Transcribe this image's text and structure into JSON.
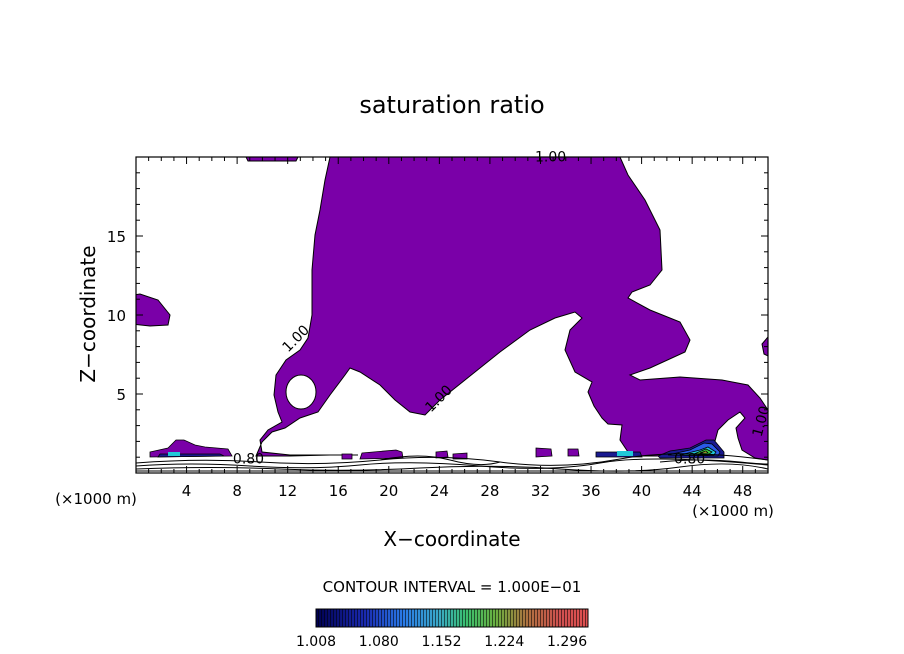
{
  "chart_data": {
    "type": "contour",
    "title": "saturation ratio",
    "xlabel": "X−coordinate",
    "ylabel": "Z−coordinate",
    "x_unit_left": "(×1000 m)",
    "x_unit_right": "(×1000 m)",
    "xlim": [
      0,
      50
    ],
    "ylim": [
      0,
      20
    ],
    "x_ticks": [
      4,
      8,
      12,
      16,
      20,
      24,
      28,
      32,
      36,
      40,
      44,
      48
    ],
    "y_ticks": [
      5,
      10,
      15
    ],
    "contour_interval_text": "CONTOUR INTERVAL = 1.000E−01",
    "contour_labels": [
      {
        "text": "1.00",
        "x": 32.8,
        "z": 19.7
      },
      {
        "text": "1.00",
        "x": 12.9,
        "z": 8.3
      },
      {
        "text": "1.00",
        "x": 24.2,
        "z": 4.5
      },
      {
        "text": "1.00",
        "x": 49.8,
        "z": 3.2
      },
      {
        "text": "0.80",
        "x": 8.9,
        "z": 0.6
      },
      {
        "text": "0.80",
        "x": 43.8,
        "z": 0.6
      }
    ],
    "colorbar": {
      "tick_labels": [
        "1.008",
        "1.080",
        "1.152",
        "1.224",
        "1.296"
      ],
      "range": [
        1.008,
        1.32
      ]
    },
    "colors": {
      "fill": "#7a00a8",
      "dark_blue": "#1a1a90",
      "blue": "#2a5ae8",
      "cyan": "#20c8d8",
      "green": "#3ad040",
      "yellow": "#e8e840"
    }
  }
}
